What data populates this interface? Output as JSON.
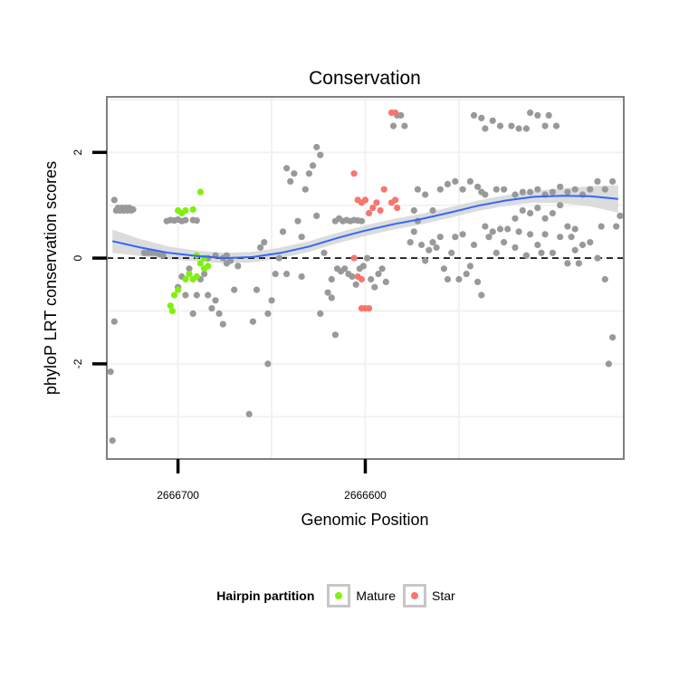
{
  "chart_data": {
    "type": "scatter",
    "title": "Conservation",
    "xlabel": "Genomic Position",
    "ylabel": "phyloP LRT conservation scores",
    "x_reversed": true,
    "xlim": [
      2666738,
      2666462
    ],
    "ylim": [
      -3.8,
      3.05
    ],
    "x_ticks": [
      2666700,
      2666600
    ],
    "x_tick_labels": [
      "2666700",
      "2666600"
    ],
    "y_ticks": [
      -2,
      0,
      2
    ],
    "y_tick_labels": [
      "-2",
      "0",
      "2"
    ],
    "reference_line": {
      "y": 0,
      "style": "dashed"
    },
    "grid": true,
    "legend": {
      "title": "Hairpin partition",
      "position": "bottom",
      "entries": [
        {
          "label": "Mature",
          "color": "#7ff00f"
        },
        {
          "label": "Star",
          "color": "#f8766d"
        }
      ]
    },
    "colors": {
      "other": "#999999",
      "mature": "#7ff00f",
      "star": "#f8766d",
      "smooth": "#3366ff",
      "band": "#d6d6d6",
      "panel_border": "#7f7f7f",
      "gridline": "#f2f2f2"
    },
    "series": [
      {
        "name": "",
        "group": "other",
        "points": [
          [
            2666736,
            -2.15
          ],
          [
            2666735,
            -3.45
          ],
          [
            2666734,
            -1.2
          ],
          [
            2666734,
            1.1
          ],
          [
            2666733,
            0.9
          ],
          [
            2666732,
            0.95
          ],
          [
            2666731,
            0.9
          ],
          [
            2666730,
            0.95
          ],
          [
            2666729,
            0.9
          ],
          [
            2666728,
            0.95
          ],
          [
            2666727,
            0.9
          ],
          [
            2666726,
            0.95
          ],
          [
            2666725,
            0.9
          ],
          [
            2666724,
            0.92
          ],
          [
            2666718,
            0.1
          ],
          [
            2666716,
            0.1
          ],
          [
            2666714,
            0.1
          ],
          [
            2666712,
            0.1
          ],
          [
            2666710,
            0.08
          ],
          [
            2666708,
            0.05
          ],
          [
            2666706,
            0.7
          ],
          [
            2666704,
            0.72
          ],
          [
            2666702,
            0.71
          ],
          [
            2666700,
            0.73
          ],
          [
            2666698,
            0.7
          ],
          [
            2666696,
            0.72
          ],
          [
            2666692,
            0.72
          ],
          [
            2666690,
            0.71
          ],
          [
            2666700,
            -0.55
          ],
          [
            2666698,
            -0.35
          ],
          [
            2666696,
            -0.7
          ],
          [
            2666694,
            -0.2
          ],
          [
            2666692,
            -1.05
          ],
          [
            2666690,
            -0.7
          ],
          [
            2666688,
            -0.4
          ],
          [
            2666686,
            -0.3
          ],
          [
            2666684,
            -0.7
          ],
          [
            2666682,
            -0.95
          ],
          [
            2666680,
            -0.8
          ],
          [
            2666678,
            -1.05
          ],
          [
            2666676,
            -1.25
          ],
          [
            2666674,
            -0.1
          ],
          [
            2666672,
            -0.05
          ],
          [
            2666670,
            -0.6
          ],
          [
            2666668,
            -0.15
          ],
          [
            2666684,
            0.0
          ],
          [
            2666680,
            0.05
          ],
          [
            2666676,
            0.0
          ],
          [
            2666674,
            0.05
          ],
          [
            2666660,
            -1.2
          ],
          [
            2666658,
            -0.6
          ],
          [
            2666656,
            0.2
          ],
          [
            2666654,
            0.3
          ],
          [
            2666652,
            -1.05
          ],
          [
            2666650,
            -0.8
          ],
          [
            2666648,
            -0.3
          ],
          [
            2666646,
            0.0
          ],
          [
            2666644,
            0.5
          ],
          [
            2666642,
            1.7
          ],
          [
            2666640,
            1.45
          ],
          [
            2666638,
            1.6
          ],
          [
            2666636,
            0.7
          ],
          [
            2666634,
            0.4
          ],
          [
            2666632,
            1.3
          ],
          [
            2666630,
            1.6
          ],
          [
            2666628,
            1.75
          ],
          [
            2666626,
            2.1
          ],
          [
            2666624,
            1.95
          ],
          [
            2666622,
            0.1
          ],
          [
            2666620,
            -0.65
          ],
          [
            2666618,
            -0.4
          ],
          [
            2666616,
            -1.45
          ],
          [
            2666662,
            -2.95
          ],
          [
            2666652,
            -2.0
          ],
          [
            2666642,
            -0.3
          ],
          [
            2666634,
            -0.35
          ],
          [
            2666626,
            0.8
          ],
          [
            2666624,
            -1.05
          ],
          [
            2666618,
            -0.75
          ],
          [
            2666616,
            0.7
          ],
          [
            2666614,
            0.75
          ],
          [
            2666612,
            0.7
          ],
          [
            2666610,
            0.72
          ],
          [
            2666608,
            0.7
          ],
          [
            2666606,
            0.72
          ],
          [
            2666604,
            0.71
          ],
          [
            2666602,
            0.7
          ],
          [
            2666615,
            -0.2
          ],
          [
            2666613,
            -0.25
          ],
          [
            2666611,
            -0.2
          ],
          [
            2666609,
            -0.3
          ],
          [
            2666607,
            -0.35
          ],
          [
            2666605,
            -0.5
          ],
          [
            2666603,
            -0.2
          ],
          [
            2666601,
            -0.15
          ],
          [
            2666599,
            0.0
          ],
          [
            2666597,
            -0.4
          ],
          [
            2666595,
            -0.55
          ],
          [
            2666593,
            -0.3
          ],
          [
            2666591,
            -0.2
          ],
          [
            2666589,
            -0.45
          ],
          [
            2666585,
            2.5
          ],
          [
            2666583,
            2.7
          ],
          [
            2666581,
            2.7
          ],
          [
            2666579,
            2.5
          ],
          [
            2666576,
            0.3
          ],
          [
            2666574,
            0.5
          ],
          [
            2666572,
            0.7
          ],
          [
            2666570,
            0.25
          ],
          [
            2666568,
            -0.05
          ],
          [
            2666566,
            0.15
          ],
          [
            2666564,
            0.3
          ],
          [
            2666562,
            0.2
          ],
          [
            2666560,
            0.4
          ],
          [
            2666558,
            -0.2
          ],
          [
            2666556,
            -0.4
          ],
          [
            2666554,
            0.1
          ],
          [
            2666552,
            0.4
          ],
          [
            2666550,
            -0.4
          ],
          [
            2666548,
            0.45
          ],
          [
            2666546,
            -0.3
          ],
          [
            2666544,
            -0.15
          ],
          [
            2666542,
            0.25
          ],
          [
            2666540,
            -0.45
          ],
          [
            2666538,
            -0.7
          ],
          [
            2666536,
            0.6
          ],
          [
            2666534,
            0.4
          ],
          [
            2666532,
            0.5
          ],
          [
            2666530,
            0.1
          ],
          [
            2666528,
            0.55
          ],
          [
            2666526,
            0.3
          ],
          [
            2666574,
            0.9
          ],
          [
            2666572,
            1.3
          ],
          [
            2666568,
            1.2
          ],
          [
            2666564,
            0.9
          ],
          [
            2666560,
            1.3
          ],
          [
            2666556,
            1.4
          ],
          [
            2666552,
            1.45
          ],
          [
            2666548,
            1.3
          ],
          [
            2666544,
            1.45
          ],
          [
            2666540,
            1.35
          ],
          [
            2666538,
            1.25
          ],
          [
            2666536,
            1.2
          ],
          [
            2666530,
            1.3
          ],
          [
            2666526,
            1.3
          ],
          [
            2666520,
            1.2
          ],
          [
            2666516,
            1.25
          ],
          [
            2666512,
            1.25
          ],
          [
            2666508,
            1.3
          ],
          [
            2666504,
            1.2
          ],
          [
            2666500,
            1.25
          ],
          [
            2666496,
            1.35
          ],
          [
            2666492,
            1.25
          ],
          [
            2666488,
            1.3
          ],
          [
            2666484,
            1.2
          ],
          [
            2666480,
            1.3
          ],
          [
            2666476,
            1.45
          ],
          [
            2666472,
            1.3
          ],
          [
            2666468,
            1.45
          ],
          [
            2666542,
            2.7
          ],
          [
            2666538,
            2.65
          ],
          [
            2666536,
            2.45
          ],
          [
            2666532,
            2.6
          ],
          [
            2666528,
            2.5
          ],
          [
            2666522,
            2.5
          ],
          [
            2666518,
            2.45
          ],
          [
            2666514,
            2.45
          ],
          [
            2666512,
            2.75
          ],
          [
            2666508,
            2.7
          ],
          [
            2666504,
            2.5
          ],
          [
            2666502,
            2.7
          ],
          [
            2666498,
            2.5
          ],
          [
            2666520,
            0.2
          ],
          [
            2666518,
            0.5
          ],
          [
            2666514,
            0.05
          ],
          [
            2666512,
            0.45
          ],
          [
            2666508,
            0.25
          ],
          [
            2666506,
            0.1
          ],
          [
            2666504,
            0.45
          ],
          [
            2666500,
            0.1
          ],
          [
            2666496,
            0.4
          ],
          [
            2666492,
            -0.1
          ],
          [
            2666490,
            0.4
          ],
          [
            2666488,
            0.15
          ],
          [
            2666486,
            -0.1
          ],
          [
            2666484,
            0.25
          ],
          [
            2666480,
            0.3
          ],
          [
            2666476,
            0.0
          ],
          [
            2666474,
            0.6
          ],
          [
            2666472,
            -0.4
          ],
          [
            2666470,
            -2.0
          ],
          [
            2666468,
            -1.5
          ],
          [
            2666466,
            0.6
          ],
          [
            2666464,
            0.8
          ],
          [
            2666524,
            0.55
          ],
          [
            2666520,
            0.75
          ],
          [
            2666516,
            0.9
          ],
          [
            2666512,
            0.85
          ],
          [
            2666508,
            0.95
          ],
          [
            2666504,
            0.75
          ],
          [
            2666500,
            0.85
          ],
          [
            2666496,
            1.0
          ],
          [
            2666492,
            0.6
          ],
          [
            2666488,
            0.55
          ]
        ]
      },
      {
        "name": "Mature",
        "group": "mature",
        "points": [
          [
            2666700,
            0.9
          ],
          [
            2666698,
            0.85
          ],
          [
            2666696,
            0.9
          ],
          [
            2666692,
            0.92
          ],
          [
            2666688,
            1.25
          ],
          [
            2666690,
            0.05
          ],
          [
            2666688,
            -0.1
          ],
          [
            2666686,
            -0.2
          ],
          [
            2666686,
            0.0
          ],
          [
            2666684,
            -0.15
          ],
          [
            2666690,
            -0.35
          ],
          [
            2666692,
            -0.4
          ],
          [
            2666694,
            -0.3
          ],
          [
            2666696,
            -0.4
          ],
          [
            2666700,
            -0.6
          ],
          [
            2666702,
            -0.7
          ],
          [
            2666703,
            -1.0
          ],
          [
            2666704,
            -0.9
          ]
        ]
      },
      {
        "name": "Star",
        "group": "star",
        "points": [
          [
            2666606,
            1.6
          ],
          [
            2666604,
            1.1
          ],
          [
            2666602,
            1.05
          ],
          [
            2666600,
            1.1
          ],
          [
            2666598,
            0.85
          ],
          [
            2666596,
            0.95
          ],
          [
            2666594,
            1.05
          ],
          [
            2666592,
            0.9
          ],
          [
            2666590,
            1.3
          ],
          [
            2666586,
            1.05
          ],
          [
            2666584,
            1.1
          ],
          [
            2666583,
            0.95
          ],
          [
            2666606,
            0.0
          ],
          [
            2666604,
            -0.35
          ],
          [
            2666602,
            -0.4
          ],
          [
            2666600,
            -0.95
          ],
          [
            2666602,
            -0.95
          ],
          [
            2666598,
            -0.95
          ],
          [
            2666586,
            2.75
          ],
          [
            2666584,
            2.75
          ]
        ]
      }
    ],
    "smooth": {
      "x": [
        2666735,
        2666720,
        2666705,
        2666690,
        2666675,
        2666660,
        2666645,
        2666630,
        2666615,
        2666600,
        2666585,
        2666570,
        2666555,
        2666540,
        2666525,
        2666510,
        2666495,
        2666480,
        2666465
      ],
      "y": [
        0.32,
        0.2,
        0.1,
        0.04,
        0.0,
        0.02,
        0.1,
        0.22,
        0.38,
        0.52,
        0.64,
        0.74,
        0.86,
        0.99,
        1.09,
        1.16,
        1.18,
        1.17,
        1.12
      ],
      "se": [
        0.22,
        0.16,
        0.12,
        0.1,
        0.1,
        0.1,
        0.1,
        0.1,
        0.1,
        0.1,
        0.1,
        0.1,
        0.1,
        0.1,
        0.1,
        0.11,
        0.14,
        0.19,
        0.26
      ]
    }
  }
}
